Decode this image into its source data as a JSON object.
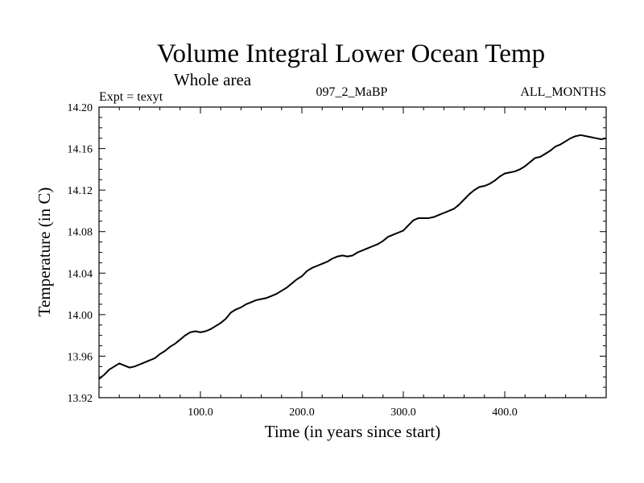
{
  "chart_data": {
    "type": "line",
    "title": "Volume Integral Lower Ocean Temp",
    "subtitle": "Whole area",
    "annotations": {
      "left": "Expt = texyt",
      "center": "097_2_MaBP",
      "right": "ALL_MONTHS"
    },
    "xlabel": "Time (in years since start)",
    "ylabel": "Temperature (in C)",
    "xlim": [
      0,
      500
    ],
    "ylim": [
      13.92,
      14.2
    ],
    "xticks": [
      {
        "value": 100,
        "label": "100.0"
      },
      {
        "value": 200,
        "label": "200.0"
      },
      {
        "value": 300,
        "label": "300.0"
      },
      {
        "value": 400,
        "label": "400.0"
      }
    ],
    "yticks": [
      {
        "value": 13.92,
        "label": "13.92"
      },
      {
        "value": 13.96,
        "label": "13.96"
      },
      {
        "value": 14.0,
        "label": "14.00"
      },
      {
        "value": 14.04,
        "label": "14.04"
      },
      {
        "value": 14.08,
        "label": "14.08"
      },
      {
        "value": 14.12,
        "label": "14.12"
      },
      {
        "value": 14.16,
        "label": "14.16"
      },
      {
        "value": 14.2,
        "label": "14.20"
      }
    ],
    "grid": false,
    "series": [
      {
        "color": "#000000",
        "x": [
          0,
          5,
          10,
          15,
          20,
          25,
          30,
          35,
          40,
          45,
          50,
          55,
          60,
          65,
          70,
          75,
          80,
          85,
          90,
          95,
          100,
          105,
          110,
          115,
          120,
          125,
          130,
          135,
          140,
          145,
          150,
          155,
          160,
          165,
          170,
          175,
          180,
          185,
          190,
          195,
          200,
          205,
          210,
          215,
          220,
          225,
          230,
          235,
          240,
          245,
          250,
          255,
          260,
          265,
          270,
          275,
          280,
          285,
          290,
          295,
          300,
          305,
          310,
          315,
          320,
          325,
          330,
          335,
          340,
          345,
          350,
          355,
          360,
          365,
          370,
          375,
          380,
          385,
          390,
          395,
          400,
          405,
          410,
          415,
          420,
          425,
          430,
          435,
          440,
          445,
          450,
          455,
          460,
          465,
          470,
          475,
          480,
          485,
          490,
          495,
          500
        ],
        "y": [
          13.938,
          13.942,
          13.947,
          13.95,
          13.953,
          13.951,
          13.949,
          13.95,
          13.952,
          13.954,
          13.956,
          13.958,
          13.962,
          13.965,
          13.969,
          13.972,
          13.976,
          13.98,
          13.983,
          13.984,
          13.983,
          13.984,
          13.986,
          13.989,
          13.992,
          13.996,
          14.002,
          14.005,
          14.007,
          14.01,
          14.012,
          14.014,
          14.015,
          14.016,
          14.018,
          14.02,
          14.023,
          14.026,
          14.03,
          14.034,
          14.037,
          14.042,
          14.045,
          14.047,
          14.049,
          14.051,
          14.054,
          14.056,
          14.057,
          14.056,
          14.057,
          14.06,
          14.062,
          14.064,
          14.066,
          14.068,
          14.071,
          14.075,
          14.077,
          14.079,
          14.081,
          14.086,
          14.091,
          14.093,
          14.093,
          14.093,
          14.094,
          14.096,
          14.098,
          14.1,
          14.102,
          14.106,
          14.111,
          14.116,
          14.12,
          14.123,
          14.124,
          14.126,
          14.129,
          14.133,
          14.136,
          14.137,
          14.138,
          14.14,
          14.143,
          14.147,
          14.151,
          14.152,
          14.155,
          14.158,
          14.162,
          14.164,
          14.167,
          14.17,
          14.172,
          14.173,
          14.172,
          14.171,
          14.17,
          14.169,
          14.17
        ]
      }
    ]
  }
}
